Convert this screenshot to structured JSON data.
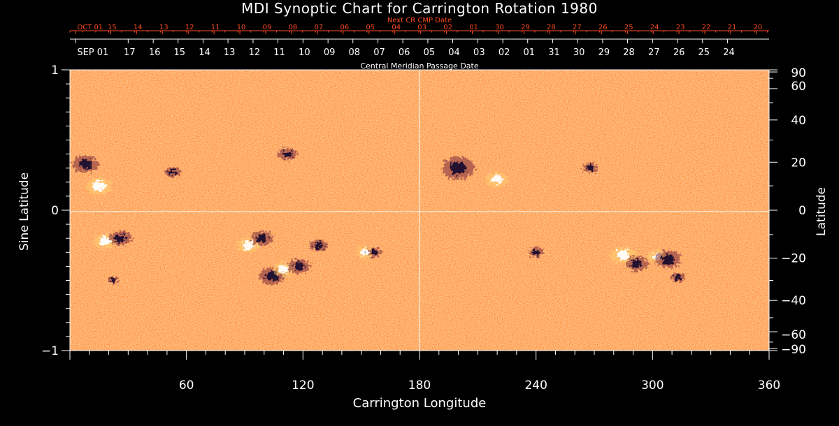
{
  "page": {
    "title": "MDI Synoptic Chart for Carrington Rotation 1980"
  },
  "colors": {
    "background": "#000000",
    "foreground": "#ffffff",
    "next_cr_text": "#ff4a1f",
    "map_base": "#ff5a1a"
  },
  "chart_data": {
    "type": "heatmap",
    "title": "MDI Synoptic Chart for Carrington Rotation 1980",
    "xlabel": "Carrington Longitude",
    "ylabel_left": "Sine Latitude",
    "ylabel_right": "Latitude",
    "top_axis_label": "Central Meridian Passage Date",
    "next_cr_label": "Next CR CMP Date",
    "xlim": [
      0,
      360
    ],
    "ylim_sine": [
      -1,
      1
    ],
    "x_ticks": [
      {
        "value": 60,
        "label": "60"
      },
      {
        "value": 120,
        "label": "120"
      },
      {
        "value": 180,
        "label": "180"
      },
      {
        "value": 240,
        "label": "240"
      },
      {
        "value": 300,
        "label": "300"
      },
      {
        "value": 360,
        "label": "360"
      }
    ],
    "left_ticks": [
      {
        "value": 1,
        "label": "1"
      },
      {
        "value": 0,
        "label": "0"
      },
      {
        "value": -1,
        "label": "−1"
      }
    ],
    "right_ticks": [
      {
        "deg": 90,
        "label": "90"
      },
      {
        "deg": 60,
        "label": "60"
      },
      {
        "deg": 40,
        "label": "40"
      },
      {
        "deg": 20,
        "label": "20"
      },
      {
        "deg": 0,
        "label": "0"
      },
      {
        "deg": -20,
        "label": "−20"
      },
      {
        "deg": -40,
        "label": "−40"
      },
      {
        "deg": -60,
        "label": "−60"
      },
      {
        "deg": -90,
        "label": "−90"
      }
    ],
    "cmp_dates": [
      {
        "lon": 3,
        "label": "SEP 01"
      },
      {
        "lon": 30,
        "label": "17"
      },
      {
        "lon": 42.9,
        "label": "16"
      },
      {
        "lon": 55.7,
        "label": "15"
      },
      {
        "lon": 68.6,
        "label": "14"
      },
      {
        "lon": 81.4,
        "label": "13"
      },
      {
        "lon": 94.3,
        "label": "12"
      },
      {
        "lon": 107.1,
        "label": "11"
      },
      {
        "lon": 120,
        "label": "10"
      },
      {
        "lon": 132.9,
        "label": "09"
      },
      {
        "lon": 145.7,
        "label": "08"
      },
      {
        "lon": 158.6,
        "label": "07"
      },
      {
        "lon": 171.4,
        "label": "06"
      },
      {
        "lon": 184.3,
        "label": "05"
      },
      {
        "lon": 197.1,
        "label": "04"
      },
      {
        "lon": 210,
        "label": "03"
      },
      {
        "lon": 222.9,
        "label": "02"
      },
      {
        "lon": 235.7,
        "label": "01"
      },
      {
        "lon": 248.6,
        "label": "31"
      },
      {
        "lon": 261.4,
        "label": "30"
      },
      {
        "lon": 274.3,
        "label": "29"
      },
      {
        "lon": 287.1,
        "label": "28"
      },
      {
        "lon": 300,
        "label": "27"
      },
      {
        "lon": 312.9,
        "label": "26"
      },
      {
        "lon": 325.7,
        "label": "25"
      },
      {
        "lon": 338.6,
        "label": "24"
      }
    ],
    "next_cr_dates": [
      {
        "lon": 3,
        "label": "OCT 01"
      },
      {
        "lon": 21,
        "label": "15"
      },
      {
        "lon": 34.3,
        "label": "14"
      },
      {
        "lon": 47.6,
        "label": "13"
      },
      {
        "lon": 60.9,
        "label": "12"
      },
      {
        "lon": 74.2,
        "label": "11"
      },
      {
        "lon": 87.5,
        "label": "10"
      },
      {
        "lon": 100.8,
        "label": "09"
      },
      {
        "lon": 114.1,
        "label": "08"
      },
      {
        "lon": 127.4,
        "label": "07"
      },
      {
        "lon": 140.7,
        "label": "06"
      },
      {
        "lon": 154,
        "label": "05"
      },
      {
        "lon": 167.3,
        "label": "04"
      },
      {
        "lon": 180.6,
        "label": "03"
      },
      {
        "lon": 193.9,
        "label": "02"
      },
      {
        "lon": 207.2,
        "label": "01"
      },
      {
        "lon": 220.5,
        "label": "30"
      },
      {
        "lon": 233.8,
        "label": "29"
      },
      {
        "lon": 247.1,
        "label": "28"
      },
      {
        "lon": 260.4,
        "label": "27"
      },
      {
        "lon": 273.7,
        "label": "26"
      },
      {
        "lon": 287,
        "label": "25"
      },
      {
        "lon": 300.3,
        "label": "24"
      },
      {
        "lon": 313.6,
        "label": "23"
      },
      {
        "lon": 326.9,
        "label": "22"
      },
      {
        "lon": 340.2,
        "label": "21"
      },
      {
        "lon": 353.5,
        "label": "20"
      }
    ],
    "active_regions": [
      {
        "lon": 8,
        "sinlat": 0.33,
        "polarity": "negative",
        "size": 0.07
      },
      {
        "lon": 15,
        "sinlat": 0.17,
        "polarity": "positive",
        "size": 0.07
      },
      {
        "lon": 53,
        "sinlat": 0.27,
        "polarity": "negative",
        "size": 0.04
      },
      {
        "lon": 112,
        "sinlat": 0.4,
        "polarity": "negative",
        "size": 0.05
      },
      {
        "lon": 200,
        "sinlat": 0.3,
        "polarity": "negative",
        "size": 0.09
      },
      {
        "lon": 220,
        "sinlat": 0.22,
        "polarity": "positive",
        "size": 0.06
      },
      {
        "lon": 268,
        "sinlat": 0.3,
        "polarity": "negative",
        "size": 0.04
      },
      {
        "lon": 18,
        "sinlat": -0.22,
        "polarity": "positive",
        "size": 0.06
      },
      {
        "lon": 26,
        "sinlat": -0.2,
        "polarity": "negative",
        "size": 0.06
      },
      {
        "lon": 22,
        "sinlat": -0.5,
        "polarity": "negative",
        "size": 0.03
      },
      {
        "lon": 92,
        "sinlat": -0.25,
        "polarity": "positive",
        "size": 0.06
      },
      {
        "lon": 99,
        "sinlat": -0.2,
        "polarity": "negative",
        "size": 0.06
      },
      {
        "lon": 104,
        "sinlat": -0.47,
        "polarity": "negative",
        "size": 0.07
      },
      {
        "lon": 110,
        "sinlat": -0.42,
        "polarity": "positive",
        "size": 0.06
      },
      {
        "lon": 118,
        "sinlat": -0.4,
        "polarity": "negative",
        "size": 0.06
      },
      {
        "lon": 128,
        "sinlat": -0.25,
        "polarity": "negative",
        "size": 0.05
      },
      {
        "lon": 152,
        "sinlat": -0.3,
        "polarity": "positive",
        "size": 0.05
      },
      {
        "lon": 157,
        "sinlat": -0.3,
        "polarity": "negative",
        "size": 0.04
      },
      {
        "lon": 240,
        "sinlat": -0.3,
        "polarity": "negative",
        "size": 0.04
      },
      {
        "lon": 285,
        "sinlat": -0.32,
        "polarity": "positive",
        "size": 0.07
      },
      {
        "lon": 292,
        "sinlat": -0.38,
        "polarity": "negative",
        "size": 0.06
      },
      {
        "lon": 302,
        "sinlat": -0.33,
        "polarity": "positive",
        "size": 0.05
      },
      {
        "lon": 308,
        "sinlat": -0.35,
        "polarity": "negative",
        "size": 0.07
      },
      {
        "lon": 313,
        "sinlat": -0.48,
        "polarity": "negative",
        "size": 0.04
      }
    ],
    "grid": false
  }
}
